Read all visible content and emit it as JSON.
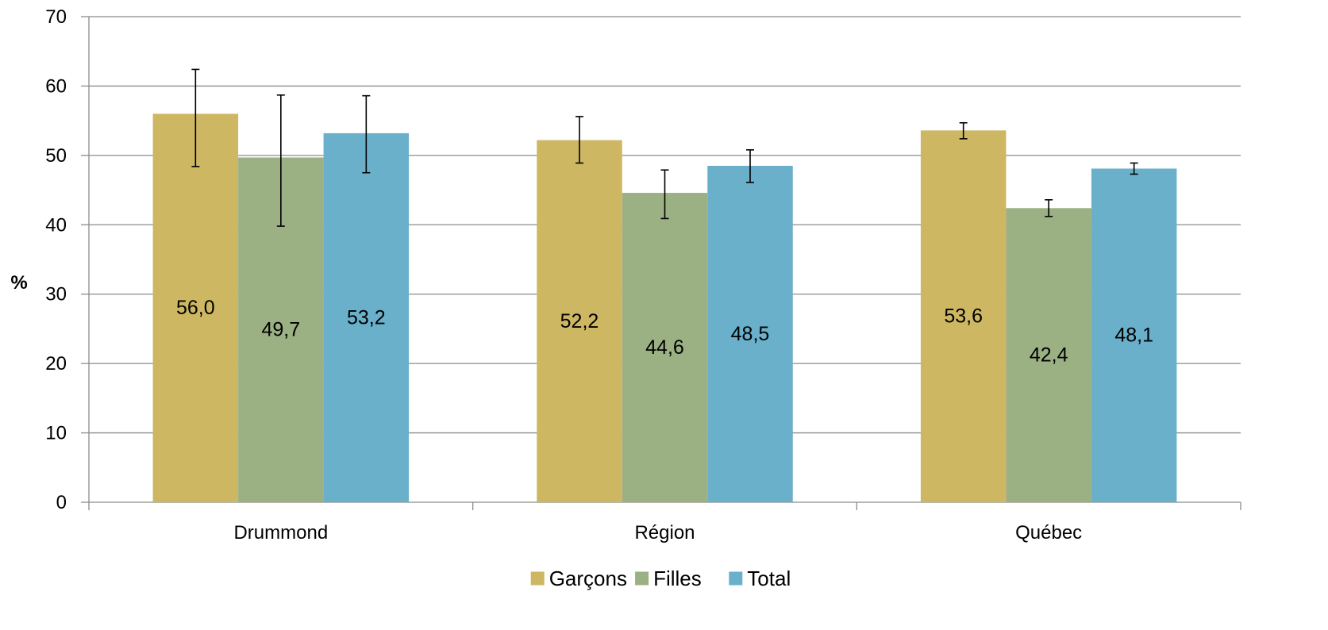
{
  "chart_data": {
    "type": "bar",
    "ylabel": "%",
    "xlabel": "",
    "ylim": [
      0,
      70
    ],
    "yticks": [
      0,
      10,
      20,
      30,
      40,
      50,
      60,
      70
    ],
    "grid": true,
    "legend_position": "bottom",
    "categories": [
      "Drummond",
      "Région",
      "Québec"
    ],
    "series": [
      {
        "name": "Garçons",
        "color": "#CDB762",
        "values": [
          56.0,
          52.2,
          53.6
        ],
        "labels": [
          "56,0",
          "52,2",
          "53,6"
        ],
        "error_low": [
          48.4,
          48.9,
          52.4
        ],
        "error_high": [
          62.4,
          55.6,
          54.7
        ]
      },
      {
        "name": "Filles",
        "color": "#9BB083",
        "values": [
          49.7,
          44.6,
          42.4
        ],
        "labels": [
          "49,7",
          "44,6",
          "42,4"
        ],
        "error_low": [
          39.8,
          40.9,
          41.2
        ],
        "error_high": [
          58.7,
          47.9,
          43.6
        ]
      },
      {
        "name": "Total",
        "color": "#6AB0CA",
        "values": [
          53.2,
          48.5,
          48.1
        ],
        "labels": [
          "53,2",
          "48,5",
          "48,1"
        ],
        "error_low": [
          47.5,
          46.1,
          47.3
        ],
        "error_high": [
          58.6,
          50.8,
          48.9
        ]
      }
    ]
  }
}
